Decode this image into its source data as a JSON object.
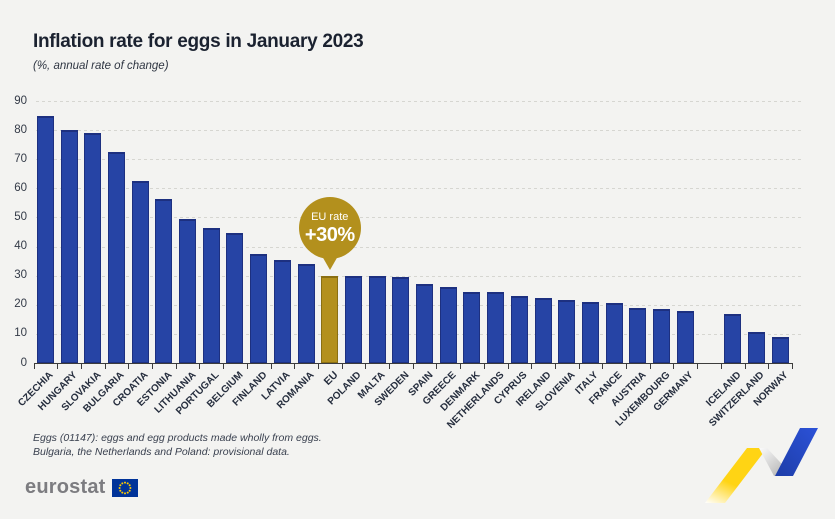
{
  "header": {
    "title": "Inflation rate for eggs in January 2023",
    "subtitle": "(%, annual rate of change)"
  },
  "badge": {
    "line1": "EU rate",
    "line2": "+30%"
  },
  "footnotes": {
    "line1": "Eggs (01147): eggs and egg products made wholly from eggs.",
    "line2": "Bulgaria, the Netherlands and Poland: provisional data."
  },
  "logo": {
    "text": "eurostat"
  },
  "colors": {
    "background": "#f3f3f1",
    "bar_blue": "#2644a5",
    "bar_gold": "#b3901d",
    "flag_blue": "#003399",
    "flag_yellow": "#ffcc00",
    "ribbon_yellow": "#ffd414",
    "ribbon_blue": "#2749c7"
  },
  "chart_data": {
    "type": "bar",
    "title": "Inflation rate for eggs in January 2023",
    "subtitle": "(%, annual rate of change)",
    "ylabel": "% annual rate of change",
    "ylim": [
      0,
      90
    ],
    "yticks": [
      0,
      10,
      20,
      30,
      40,
      50,
      60,
      70,
      80,
      90
    ],
    "grid": "horizontal-dashed",
    "legend": "none",
    "categories": [
      "CZECHIA",
      "HUNGARY",
      "SLOVAKIA",
      "BULGARIA",
      "CROATIA",
      "ESTONIA",
      "LITHUANIA",
      "PORTUGAL",
      "BELGIUM",
      "FINLAND",
      "LATVIA",
      "ROMANIA",
      "EU",
      "POLAND",
      "MALTA",
      "SWEDEN",
      "SPAIN",
      "GREECE",
      "DENMARK",
      "NETHERLANDS",
      "CYPRUS",
      "IRELAND",
      "SLOVENIA",
      "ITALY",
      "FRANCE",
      "AUSTRIA",
      "LUXEMBOURG",
      "GERMANY",
      "ICELAND",
      "SWITZERLAND",
      "NORWAY"
    ],
    "values": [
      85,
      80,
      79,
      72.5,
      62.5,
      56.5,
      49.5,
      46.5,
      44.5,
      37.5,
      35.5,
      34,
      30,
      30,
      30,
      29.5,
      27,
      26,
      24.5,
      24.5,
      23,
      22.5,
      21.5,
      21,
      20.5,
      19,
      18.5,
      18,
      17,
      10.5,
      9
    ],
    "highlight_category": "EU",
    "group_break_after": "GERMANY",
    "annotation": {
      "target": "EU",
      "text": "EU rate +30%"
    }
  }
}
